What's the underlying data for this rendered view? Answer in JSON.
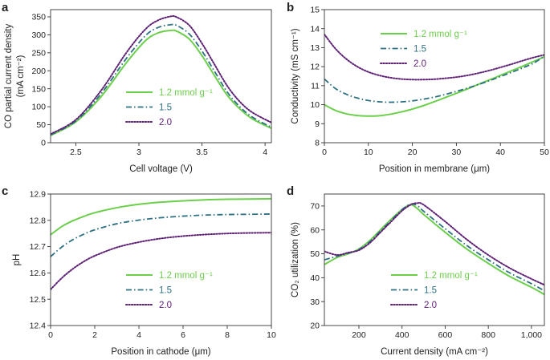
{
  "chart_data": [
    {
      "panel": "a",
      "type": "line",
      "xlabel": "Cell voltage (V)",
      "ylabel": [
        "CO partial current density",
        "(mA cm⁻²)"
      ],
      "xlim": [
        2.3,
        4.05
      ],
      "ylim": [
        0,
        370
      ],
      "xticks": [
        2.5,
        3,
        3.5,
        4
      ],
      "xtick_labels": [
        "2.5",
        "3",
        "3.5",
        "4"
      ],
      "yticks": [
        0,
        50,
        100,
        150,
        200,
        250,
        300,
        350
      ],
      "ytick_labels": [
        "0",
        "50",
        "100",
        "150",
        "200",
        "250",
        "300",
        "350"
      ],
      "legend_position": "center-left",
      "x": [
        2.3,
        2.5,
        2.7,
        2.9,
        3.05,
        3.15,
        3.25,
        3.3,
        3.4,
        3.5,
        3.6,
        3.7,
        3.8,
        3.9,
        4.05
      ],
      "series": [
        {
          "name": "1.2 mmol g⁻¹",
          "style": "solid",
          "values": [
            20,
            58,
            128,
            222,
            283,
            305,
            312,
            310,
            288,
            242,
            186,
            132,
            94,
            66,
            40
          ]
        },
        {
          "name": "1.5",
          "style": "dashdot",
          "values": [
            22,
            60,
            136,
            234,
            297,
            320,
            328,
            326,
            302,
            255,
            198,
            141,
            100,
            71,
            43
          ]
        },
        {
          "name": "2.0",
          "style": "dotted",
          "values": [
            24,
            64,
            145,
            250,
            315,
            340,
            351,
            349,
            326,
            276,
            217,
            158,
            114,
            84,
            56
          ]
        }
      ]
    },
    {
      "panel": "b",
      "type": "line",
      "xlabel": "Position in membrane (μm)",
      "ylabel": [
        "Conductivity (mS cm⁻¹)"
      ],
      "xlim": [
        0,
        50
      ],
      "ylim": [
        8,
        15
      ],
      "xticks": [
        0,
        10,
        20,
        30,
        40,
        50
      ],
      "xtick_labels": [
        "0",
        "10",
        "20",
        "30",
        "40",
        "50"
      ],
      "yticks": [
        8,
        9,
        10,
        11,
        12,
        13,
        14,
        15
      ],
      "ytick_labels": [
        "8",
        "9",
        "10",
        "11",
        "12",
        "13",
        "14",
        "15"
      ],
      "legend_position": "top-right",
      "x": [
        0,
        2.5,
        5,
        7.5,
        10,
        12.5,
        15,
        17.5,
        20,
        22.5,
        25,
        27.5,
        30,
        32.5,
        35,
        37.5,
        40,
        42.5,
        45,
        47.5,
        50
      ],
      "series": [
        {
          "name": "1.2 mmol g⁻¹",
          "style": "solid",
          "values": [
            10.0,
            9.7,
            9.52,
            9.43,
            9.4,
            9.42,
            9.5,
            9.62,
            9.77,
            9.95,
            10.16,
            10.38,
            10.6,
            10.83,
            11.07,
            11.3,
            11.54,
            11.78,
            12.02,
            12.27,
            12.52
          ]
        },
        {
          "name": "1.5",
          "style": "dashdot",
          "values": [
            11.35,
            10.85,
            10.55,
            10.35,
            10.22,
            10.15,
            10.13,
            10.15,
            10.2,
            10.29,
            10.4,
            10.54,
            10.7,
            10.87,
            11.06,
            11.26,
            11.48,
            11.7,
            11.93,
            12.18,
            12.55
          ]
        },
        {
          "name": "2.0",
          "style": "dotted",
          "values": [
            13.7,
            12.95,
            12.4,
            12.0,
            11.72,
            11.54,
            11.42,
            11.35,
            11.32,
            11.32,
            11.34,
            11.39,
            11.45,
            11.54,
            11.66,
            11.8,
            11.96,
            12.13,
            12.31,
            12.48,
            12.62
          ]
        }
      ]
    },
    {
      "panel": "c",
      "type": "line",
      "xlabel": "Position in cathode (μm)",
      "ylabel": [
        "pH"
      ],
      "xlim": [
        0,
        10
      ],
      "ylim": [
        12.4,
        12.9
      ],
      "xticks": [
        0,
        2,
        4,
        6,
        8,
        10
      ],
      "xtick_labels": [
        "0",
        "2",
        "4",
        "6",
        "8",
        "10"
      ],
      "yticks": [
        12.4,
        12.5,
        12.6,
        12.7,
        12.8,
        12.9
      ],
      "ytick_labels": [
        "12.4",
        "12.5",
        "12.6",
        "12.7",
        "12.8",
        "12.9"
      ],
      "legend_position": "bottom-right",
      "x": [
        0,
        0.5,
        1,
        1.5,
        2,
        3,
        4,
        5,
        6,
        7,
        8,
        9,
        10
      ],
      "series": [
        {
          "name": "1.2 mmol g⁻¹",
          "style": "solid",
          "values": [
            12.745,
            12.776,
            12.798,
            12.815,
            12.829,
            12.848,
            12.861,
            12.869,
            12.874,
            12.878,
            12.88,
            12.881,
            12.882
          ]
        },
        {
          "name": "1.5",
          "style": "dashdot",
          "values": [
            12.662,
            12.698,
            12.726,
            12.747,
            12.764,
            12.787,
            12.801,
            12.81,
            12.816,
            12.82,
            12.822,
            12.823,
            12.824
          ]
        },
        {
          "name": "2.0",
          "style": "dotted",
          "values": [
            12.537,
            12.58,
            12.615,
            12.643,
            12.665,
            12.697,
            12.717,
            12.731,
            12.74,
            12.746,
            12.75,
            12.752,
            12.753
          ]
        }
      ]
    },
    {
      "panel": "d",
      "type": "line",
      "xlabel": "Current density (mA cm⁻²)",
      "ylabel": [
        "CO₂ utilization (%)"
      ],
      "xlim": [
        40,
        1060
      ],
      "ylim": [
        20,
        75
      ],
      "xticks": [
        200,
        400,
        600,
        800,
        1000
      ],
      "xtick_labels": [
        "200",
        "400",
        "600",
        "800",
        "1,000"
      ],
      "yticks": [
        20,
        30,
        40,
        50,
        60,
        70
      ],
      "ytick_labels": [
        "20",
        "30",
        "40",
        "50",
        "60",
        "70"
      ],
      "legend_position": "bottom-right",
      "x": [
        40,
        100,
        150,
        200,
        250,
        300,
        350,
        400,
        440,
        470,
        500,
        600,
        700,
        800,
        900,
        1000,
        1060
      ],
      "series": [
        {
          "name": "1.2 mmol g⁻¹",
          "style": "solid",
          "values": [
            45.5,
            48.5,
            50.0,
            52.0,
            55.5,
            60.0,
            64.5,
            68.5,
            70.5,
            69.0,
            66.5,
            59.0,
            52.0,
            46.0,
            40.5,
            36.0,
            33.0
          ]
        },
        {
          "name": "1.5",
          "style": "dashdot",
          "values": [
            47.5,
            49.0,
            50.2,
            51.8,
            55.0,
            59.5,
            64.0,
            68.5,
            70.8,
            70.2,
            67.8,
            60.5,
            53.5,
            47.5,
            42.0,
            37.5,
            34.5
          ]
        },
        {
          "name": "2.0",
          "style": "dotted",
          "values": [
            51.0,
            49.5,
            50.5,
            51.5,
            54.5,
            59.0,
            63.5,
            68.0,
            70.5,
            71.2,
            70.5,
            63.5,
            56.0,
            49.5,
            44.0,
            39.5,
            37.0
          ]
        }
      ]
    }
  ],
  "panel_letters": [
    "a",
    "b",
    "c",
    "d"
  ],
  "legend_labels": [
    "1.2 mmol g⁻¹",
    "1.5",
    "2.0"
  ],
  "colors": {
    "series_1_2": "#6ccf4b",
    "series_1_5": "#2e7183",
    "series_2_0": "#5e2175",
    "axis": "#333333"
  }
}
